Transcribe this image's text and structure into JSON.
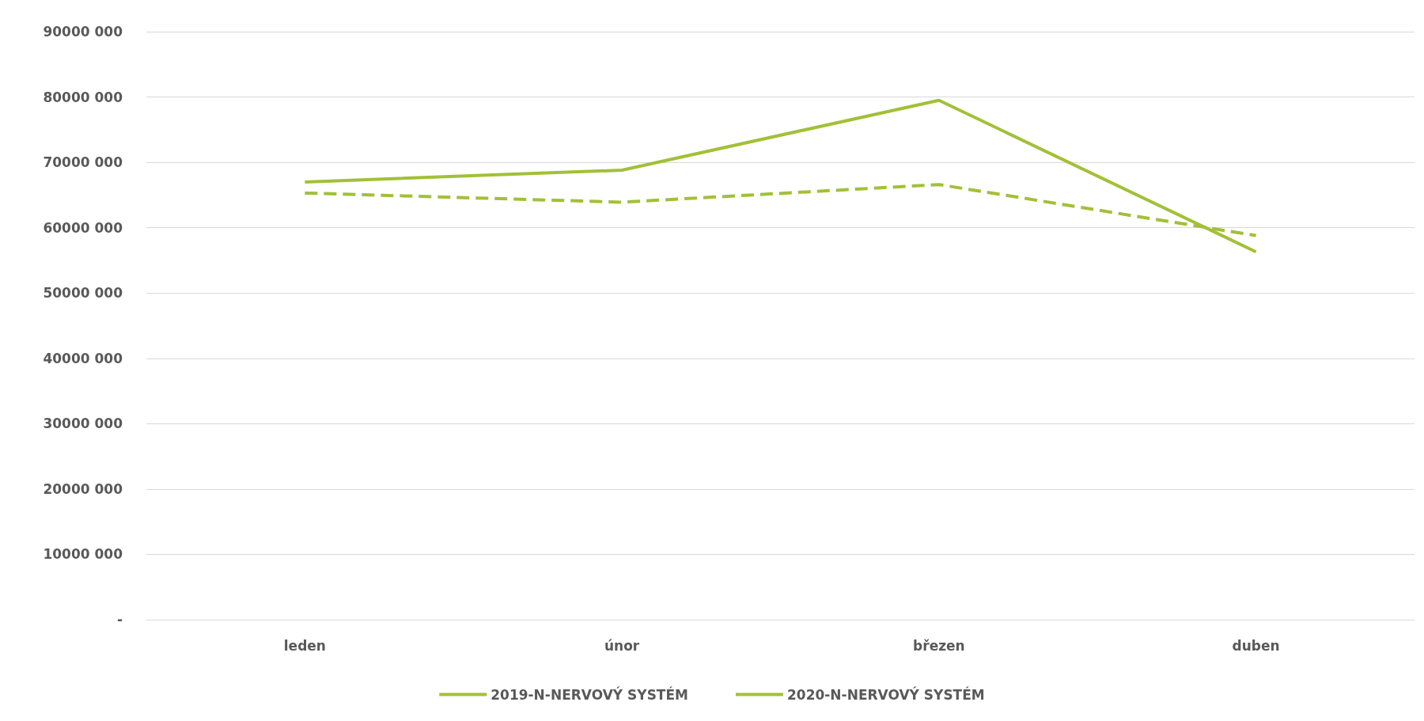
{
  "chart_data": {
    "type": "line",
    "categories": [
      "leden",
      "únor",
      "březen",
      "duben"
    ],
    "series": [
      {
        "name": "2019-N-NERVOVÝ SYSTÉM",
        "color": "#a2c037",
        "line_style": "dashed",
        "values": [
          65300000,
          63900000,
          66600000,
          58800000
        ]
      },
      {
        "name": "2020-N-NERVOVÝ SYSTÉM",
        "color": "#a2c037",
        "line_style": "solid",
        "values": [
          67000000,
          68800000,
          79500000,
          56300000
        ]
      }
    ],
    "ylim": [
      0,
      90000000
    ],
    "yticks": [
      {
        "value": 0,
        "label": "-"
      },
      {
        "value": 10000000,
        "label": "10000 000"
      },
      {
        "value": 20000000,
        "label": "20000 000"
      },
      {
        "value": 30000000,
        "label": "30000 000"
      },
      {
        "value": 40000000,
        "label": "40000 000"
      },
      {
        "value": 50000000,
        "label": "50000 000"
      },
      {
        "value": 60000000,
        "label": "60000 000"
      },
      {
        "value": 70000000,
        "label": "70000 000"
      },
      {
        "value": 80000000,
        "label": "80000 000"
      },
      {
        "value": 90000000,
        "label": "90000 000"
      }
    ],
    "grid": "y",
    "legend": "bottom",
    "marker": "none"
  }
}
